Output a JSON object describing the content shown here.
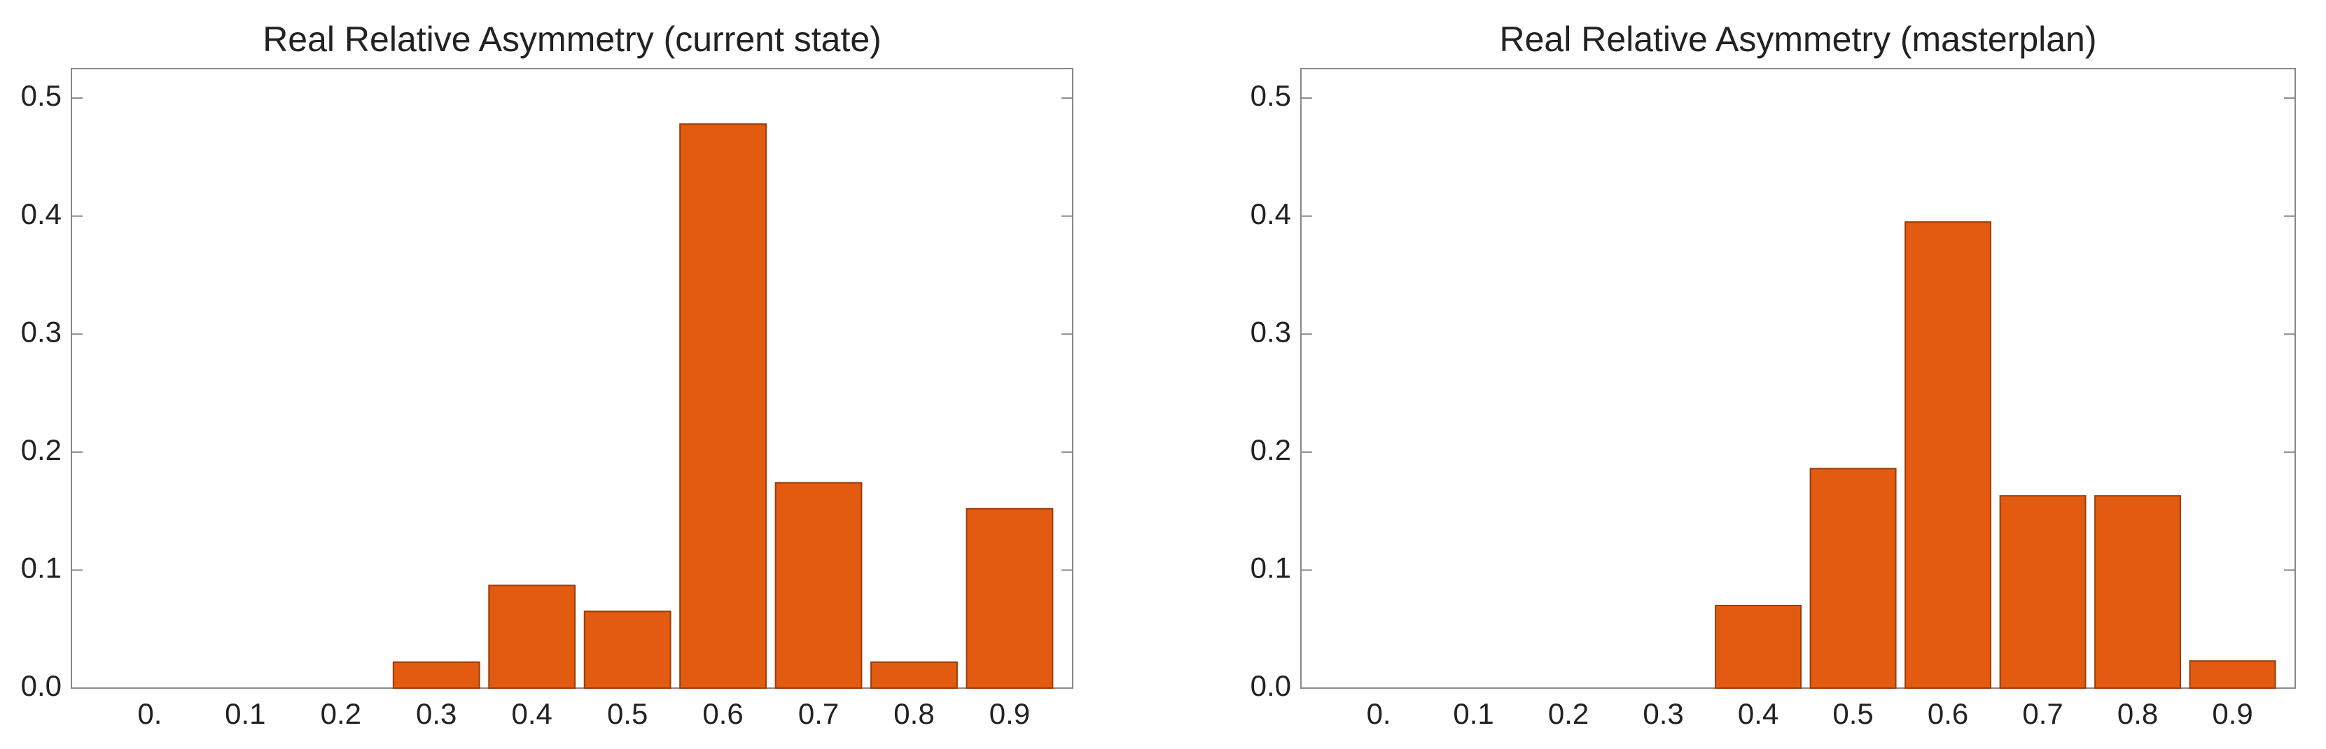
{
  "chart_data": [
    {
      "type": "bar",
      "title": "Real Relative Asymmetry (current state)",
      "categories": [
        "0.",
        "0.1",
        "0.2",
        "0.3",
        "0.4",
        "0.5",
        "0.6",
        "0.7",
        "0.8",
        "0.9"
      ],
      "values": [
        0,
        0,
        0,
        0.022,
        0.087,
        0.065,
        0.478,
        0.174,
        0.022,
        0.152
      ],
      "color": "#e35b10",
      "ylim": [
        0,
        0.525
      ],
      "yticks": [
        {
          "value": 0,
          "label": "0.0"
        },
        0.1,
        0.2,
        0.3,
        0.4,
        0.5
      ]
    },
    {
      "type": "bar",
      "title": "Real Relative Asymmetry (masterplan)",
      "categories": [
        "0.",
        "0.1",
        "0.2",
        "0.3",
        "0.4",
        "0.5",
        "0.6",
        "0.7",
        "0.8",
        "0.9"
      ],
      "values": [
        0,
        0,
        0,
        0,
        0.07,
        0.186,
        0.395,
        0.163,
        0.163,
        0.023
      ],
      "color": "#e35b10",
      "ylim": [
        0,
        0.525
      ],
      "yticks": [
        {
          "value": 0,
          "label": "0.0"
        },
        0.1,
        0.2,
        0.3,
        0.4,
        0.5
      ]
    }
  ]
}
